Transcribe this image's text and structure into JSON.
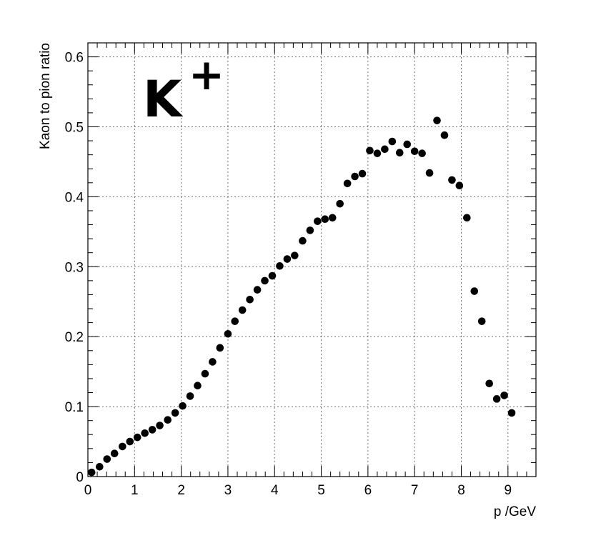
{
  "chart_data": {
    "type": "scatter",
    "xlabel": "p /GeV",
    "ylabel": "Kaon to pion ratio",
    "annotation": {
      "base": "K",
      "sup": "+"
    },
    "xlim": [
      0,
      9.6
    ],
    "ylim": [
      0,
      0.62
    ],
    "x_ticks": [
      "0",
      "1",
      "2",
      "3",
      "4",
      "5",
      "6",
      "7",
      "8",
      "9"
    ],
    "y_ticks": [
      "0",
      "0.1",
      "0.2",
      "0.3",
      "0.4",
      "0.5",
      "0.6"
    ],
    "grid": true,
    "series": [
      {
        "x": [
          0.08,
          0.25,
          0.41,
          0.57,
          0.74,
          0.9,
          1.06,
          1.22,
          1.38,
          1.54,
          1.71,
          1.87,
          2.03,
          2.19,
          2.35,
          2.51,
          2.67,
          2.83,
          3.0,
          3.15,
          3.31,
          3.47,
          3.63,
          3.79,
          3.95,
          4.11,
          4.27,
          4.43,
          4.6,
          4.76,
          4.92,
          5.08,
          5.24,
          5.4,
          5.56,
          5.72,
          5.88,
          6.04,
          6.2,
          6.36,
          6.52,
          6.68,
          6.84,
          7.0,
          7.16,
          7.32,
          7.48,
          7.64,
          7.8,
          7.96,
          8.12,
          8.28,
          8.44,
          8.6,
          8.76,
          8.92,
          9.08
        ],
        "y": [
          0.006,
          0.014,
          0.025,
          0.033,
          0.043,
          0.05,
          0.056,
          0.062,
          0.067,
          0.073,
          0.081,
          0.091,
          0.101,
          0.115,
          0.13,
          0.147,
          0.164,
          0.184,
          0.204,
          0.222,
          0.238,
          0.253,
          0.267,
          0.28,
          0.287,
          0.301,
          0.311,
          0.316,
          0.337,
          0.352,
          0.365,
          0.368,
          0.37,
          0.39,
          0.419,
          0.429,
          0.433,
          0.466,
          0.462,
          0.468,
          0.479,
          0.463,
          0.475,
          0.465,
          0.462,
          0.434,
          0.509,
          0.488,
          0.424,
          0.416,
          0.37,
          0.265,
          0.222,
          0.133,
          0.111,
          0.116,
          0.091
        ]
      }
    ]
  }
}
